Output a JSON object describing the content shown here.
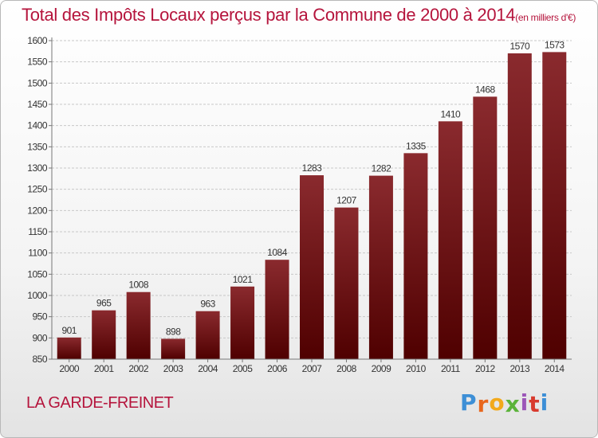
{
  "header": {
    "title": "Total des Impôts Locaux perçus par la Commune de 2000 à 2014",
    "unit": "(en milliers d'€)"
  },
  "footer": {
    "commune": "LA GARDE-FREINET",
    "logo": {
      "letters": [
        "P",
        "r",
        "o",
        "x",
        "i",
        "t",
        "i"
      ],
      "colors": [
        "#3d8fd6",
        "#e8671d",
        "#f2a91b",
        "#5bb33a",
        "#9c56b8",
        "#d83a2e",
        "#3d8fd6"
      ]
    }
  },
  "chart_data": {
    "type": "bar",
    "categories": [
      "2000",
      "2001",
      "2002",
      "2003",
      "2004",
      "2005",
      "2006",
      "2007",
      "2008",
      "2009",
      "2010",
      "2011",
      "2012",
      "2013",
      "2014"
    ],
    "values": [
      901,
      965,
      1008,
      898,
      963,
      1021,
      1084,
      1283,
      1207,
      1282,
      1335,
      1410,
      1468,
      1570,
      1573
    ],
    "ylim": [
      850,
      1600
    ],
    "yticks": [
      850,
      900,
      950,
      1000,
      1050,
      1100,
      1150,
      1200,
      1250,
      1300,
      1350,
      1400,
      1450,
      1500,
      1550,
      1600
    ],
    "grid": true,
    "bar_color_top": "#8a2a2e",
    "bar_color_bottom": "#4f0000"
  }
}
